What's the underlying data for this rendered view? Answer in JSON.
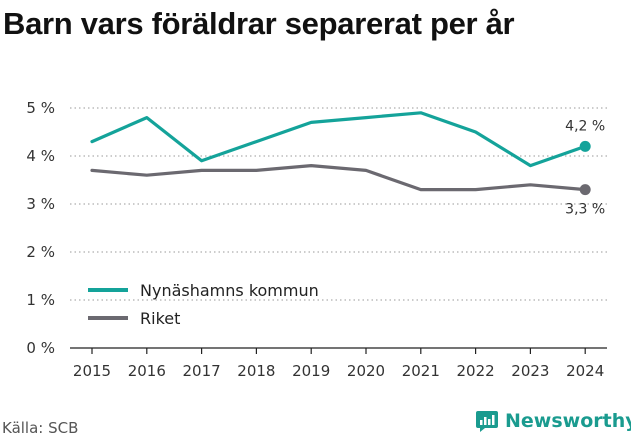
{
  "title": "Barn vars föräldrar separerat per år",
  "source": "Källa: SCB",
  "brand": {
    "name": "Newsworthy",
    "icon": "newsworthy-logo-icon",
    "color": "#1a9b8f"
  },
  "chart_data": {
    "type": "line",
    "x": [
      "2015",
      "2016",
      "2017",
      "2018",
      "2019",
      "2020",
      "2021",
      "2022",
      "2023",
      "2024"
    ],
    "series": [
      {
        "name": "Nynäshamns kommun",
        "color": "#14a39a",
        "values": [
          4.3,
          4.8,
          3.9,
          4.3,
          4.7,
          4.8,
          4.9,
          4.5,
          3.8,
          4.2
        ],
        "end_label": "4,2 %"
      },
      {
        "name": "Riket",
        "color": "#6b6970",
        "values": [
          3.7,
          3.6,
          3.7,
          3.7,
          3.8,
          3.7,
          3.3,
          3.3,
          3.4,
          3.3
        ],
        "end_label": "3,3 %"
      }
    ],
    "yticks": [
      "0 %",
      "1 %",
      "2 %",
      "3 %",
      "4 %",
      "5 %"
    ],
    "ylim": [
      0,
      5
    ],
    "grid": "horizontal dotted",
    "legend_position": "lower-left"
  }
}
